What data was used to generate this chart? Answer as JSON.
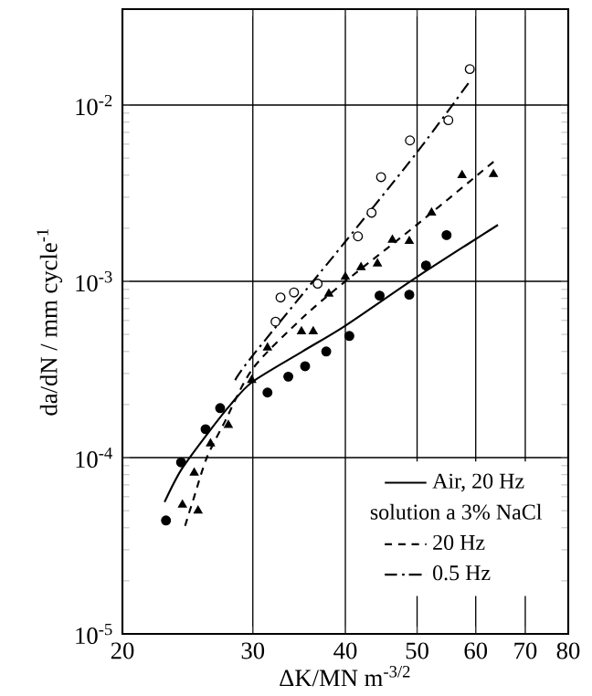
{
  "chart_data": {
    "type": "scatter",
    "xlabel": "ΔK/MN m$^{-3/2}$",
    "ylabel": "da/dN / mm cycle$^{-1}$",
    "legend_title": "solution a 3% NaCl",
    "log": "xy",
    "grid": true,
    "legend": "bottom right",
    "xlim": [
      20,
      80
    ],
    "ylim": [
      1e-05,
      0.035
    ],
    "xticks": [
      20,
      30,
      40,
      50,
      60,
      70,
      80
    ],
    "yticks": [
      {
        "value": 1e-05,
        "label": "10$^{-5}$"
      },
      {
        "value": 0.0001,
        "label": "10$^{-4}$"
      },
      {
        "value": 0.001,
        "label": "10$^{-3}$"
      },
      {
        "value": 0.01,
        "label": "10$^{-2}$"
      }
    ],
    "series": [
      {
        "type": "line",
        "name": "Air, 20 Hz",
        "color": "#000000",
        "line_style": "solid",
        "x": [
          22.8,
          24,
          26,
          28,
          30,
          35,
          40,
          50,
          64.3
        ],
        "values": [
          5.6e-05,
          8.5e-05,
          0.000135,
          0.0002,
          0.00027,
          0.0004,
          0.00056,
          0.00106,
          0.00209
        ]
      },
      {
        "type": "line",
        "name": "20 Hz",
        "color": "#000000",
        "line_style": "dashed",
        "x": [
          24.3,
          25,
          26,
          27.5,
          30,
          35,
          40,
          50,
          64.3
        ],
        "values": [
          4.1e-05,
          6e-05,
          0.0001,
          0.00016,
          0.00032,
          0.00062,
          0.001,
          0.0021,
          0.005
        ]
      },
      {
        "type": "line",
        "name": "0.5 Hz",
        "color": "#000000",
        "line_style": "dashdot",
        "x": [
          28.4,
          30,
          40,
          50,
          58.8
        ],
        "values": [
          0.000275,
          0.00038,
          0.00168,
          0.0054,
          0.0135
        ]
      },
      {
        "color": "#000000",
        "marker": "circle",
        "x": [
          22.9,
          24.0,
          25.9,
          27.1,
          31.4,
          33.5,
          35.3,
          37.7,
          40.5,
          44.5,
          48.8,
          51.4,
          54.8
        ],
        "values": [
          4.4e-05,
          9.4e-05,
          0.000145,
          0.000191,
          0.000234,
          0.000288,
          0.00033,
          0.0004,
          0.00049,
          0.00083,
          0.00084,
          0.00123,
          0.00183
        ]
      },
      {
        "color": "#000000",
        "marker": "triangle",
        "x": [
          24.1,
          25.3,
          25.0,
          26.3,
          27.8,
          29.9,
          31.4,
          34.9,
          36.2,
          38.0,
          40.0,
          42.0,
          44.2,
          46.3,
          48.8,
          52.3,
          57.5,
          63.4
        ],
        "values": [
          5.4e-05,
          5e-05,
          8.2e-05,
          0.00012,
          0.000153,
          0.000275,
          0.00042,
          0.00052,
          0.00052,
          0.00085,
          0.00106,
          0.0012,
          0.00126,
          0.00172,
          0.00169,
          0.00245,
          0.004,
          0.00405
        ]
      },
      {
        "color": "#ffffff",
        "marker": "circle",
        "x": [
          32.2,
          32.7,
          34.1,
          36.7,
          41.6,
          43.4,
          44.7,
          48.9,
          55.1,
          58.9
        ],
        "values": [
          0.00059,
          0.00081,
          0.000865,
          0.00097,
          0.0018,
          0.00245,
          0.0039,
          0.0063,
          0.0082,
          0.016
        ]
      }
    ]
  }
}
